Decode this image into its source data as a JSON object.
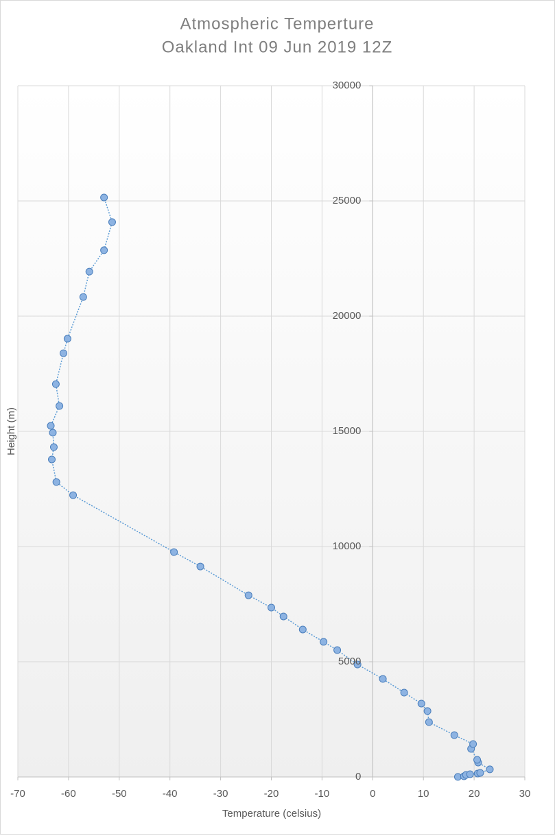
{
  "chart_data": {
    "type": "scatter",
    "title": "Atmospheric Temperture",
    "subtitle": "Oakland Int 09 Jun 2019 12Z",
    "x_label": "Temperature (celsius)",
    "y_label": "Height (m)",
    "xlim": [
      -70,
      30
    ],
    "xticks": [
      -70,
      -60,
      -50,
      -40,
      -30,
      -20,
      -10,
      0,
      10,
      20,
      30
    ],
    "ylim": [
      0,
      30000
    ],
    "yticks": [
      0,
      5000,
      10000,
      15000,
      20000,
      25000,
      30000
    ],
    "grid": true,
    "series": [
      {
        "color": "#8db3e2",
        "x": [
          16.8,
          18.0,
          18.4,
          19.2,
          20.7,
          21.2,
          23.1,
          20.8,
          20.6,
          19.4,
          19.8,
          16.1,
          11.1,
          10.8,
          9.6,
          6.2,
          2.0,
          -3.0,
          -7.0,
          -9.7,
          -13.8,
          -17.6,
          -20.0,
          -24.5,
          -34.0,
          -39.2,
          -59.1,
          -62.4,
          -63.3,
          -62.9,
          -63.1,
          -63.5,
          -61.8,
          -62.5,
          -61.0,
          -60.2,
          -57.1,
          -55.9,
          -53.0,
          -51.4,
          -53.0
        ],
        "values": [
          3,
          30,
          90,
          120,
          150,
          180,
          330,
          625,
          745,
          1220,
          1430,
          1815,
          2380,
          2860,
          3185,
          3660,
          4255,
          4880,
          5505,
          5865,
          6400,
          6965,
          7350,
          7885,
          9135,
          9760,
          12230,
          12800,
          13780,
          14315,
          14940,
          15240,
          16100,
          17050,
          18390,
          19020,
          20830,
          21930,
          22860,
          24080,
          25150
        ]
      }
    ]
  }
}
